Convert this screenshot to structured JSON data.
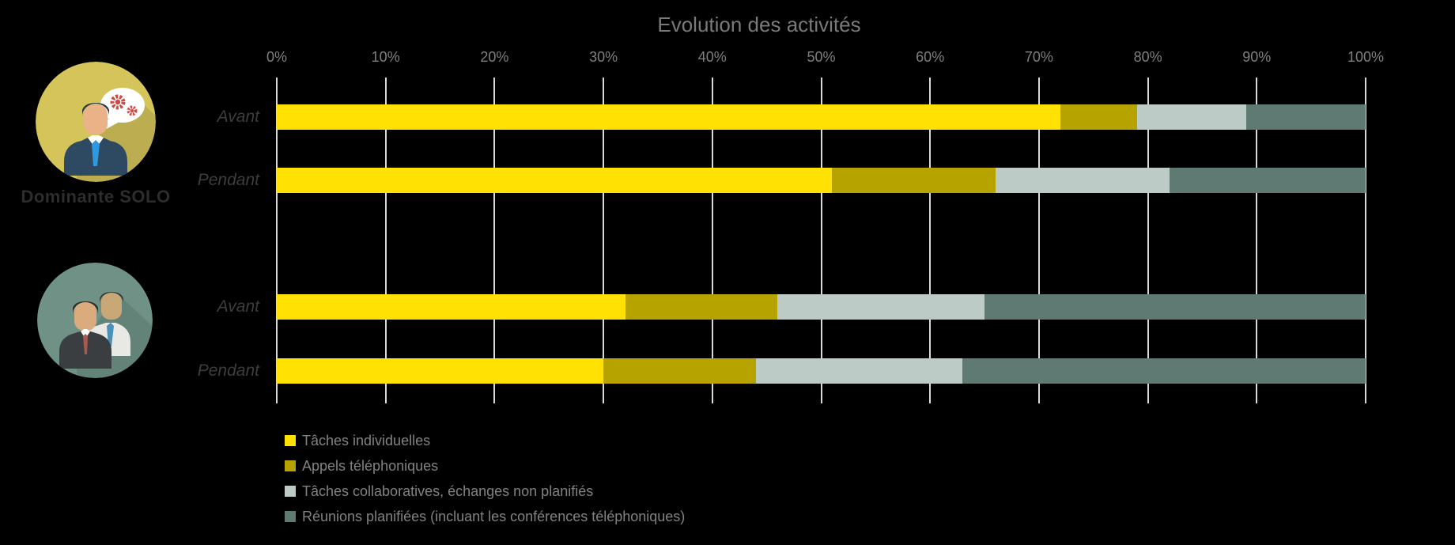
{
  "chart_data": {
    "type": "bar",
    "stacked": true,
    "orientation": "horizontal",
    "title": "Evolution des activités",
    "x_axis": {
      "position": "top",
      "range": [
        0,
        100
      ],
      "ticks": [
        "0%",
        "10%",
        "20%",
        "30%",
        "40%",
        "50%",
        "60%",
        "70%",
        "80%",
        "90%",
        "100%"
      ]
    },
    "grid": true,
    "legend_position": "bottom-left",
    "series": [
      {
        "name": "Tâches individuelles",
        "color": "#ffe103"
      },
      {
        "name": "Appels téléphoniques",
        "color": "#b7a300"
      },
      {
        "name": "Tâches collaboratives, échanges non planifiés",
        "color": "#bccbc5"
      },
      {
        "name": "Réunions planifiées (incluant les conférences téléphoniques)",
        "color": "#5e7a73"
      }
    ],
    "groups": [
      {
        "label": "Dominante SOLO",
        "icon": "solo-person-speech-bubble-gears-icon",
        "rows": [
          {
            "category": "Avant",
            "values": [
              72,
              7,
              10,
              11
            ]
          },
          {
            "category": "Pendant",
            "values": [
              51,
              15,
              16,
              18
            ]
          }
        ]
      },
      {
        "label": "",
        "icon": "two-business-people-icon",
        "rows": [
          {
            "category": "Avant",
            "values": [
              32,
              14,
              19,
              35
            ]
          },
          {
            "category": "Pendant",
            "values": [
              30,
              14,
              19,
              37
            ]
          }
        ]
      }
    ]
  },
  "colors": {
    "background": "#000000",
    "gridline": "#d9d9d9",
    "title_text": "#7a7a7a",
    "axis_text": "#7f7f7f",
    "category_text": "#3d3d3d",
    "legend_text": "#828282",
    "solo_badge_bg": "#d4c45a",
    "duo_badge_bg": "#6f9186",
    "group_label_text": "#2d2d2d"
  },
  "icons": {
    "solo_badge": "person-with-speech-bubble-gears",
    "duo_badge": "two-business-people"
  }
}
